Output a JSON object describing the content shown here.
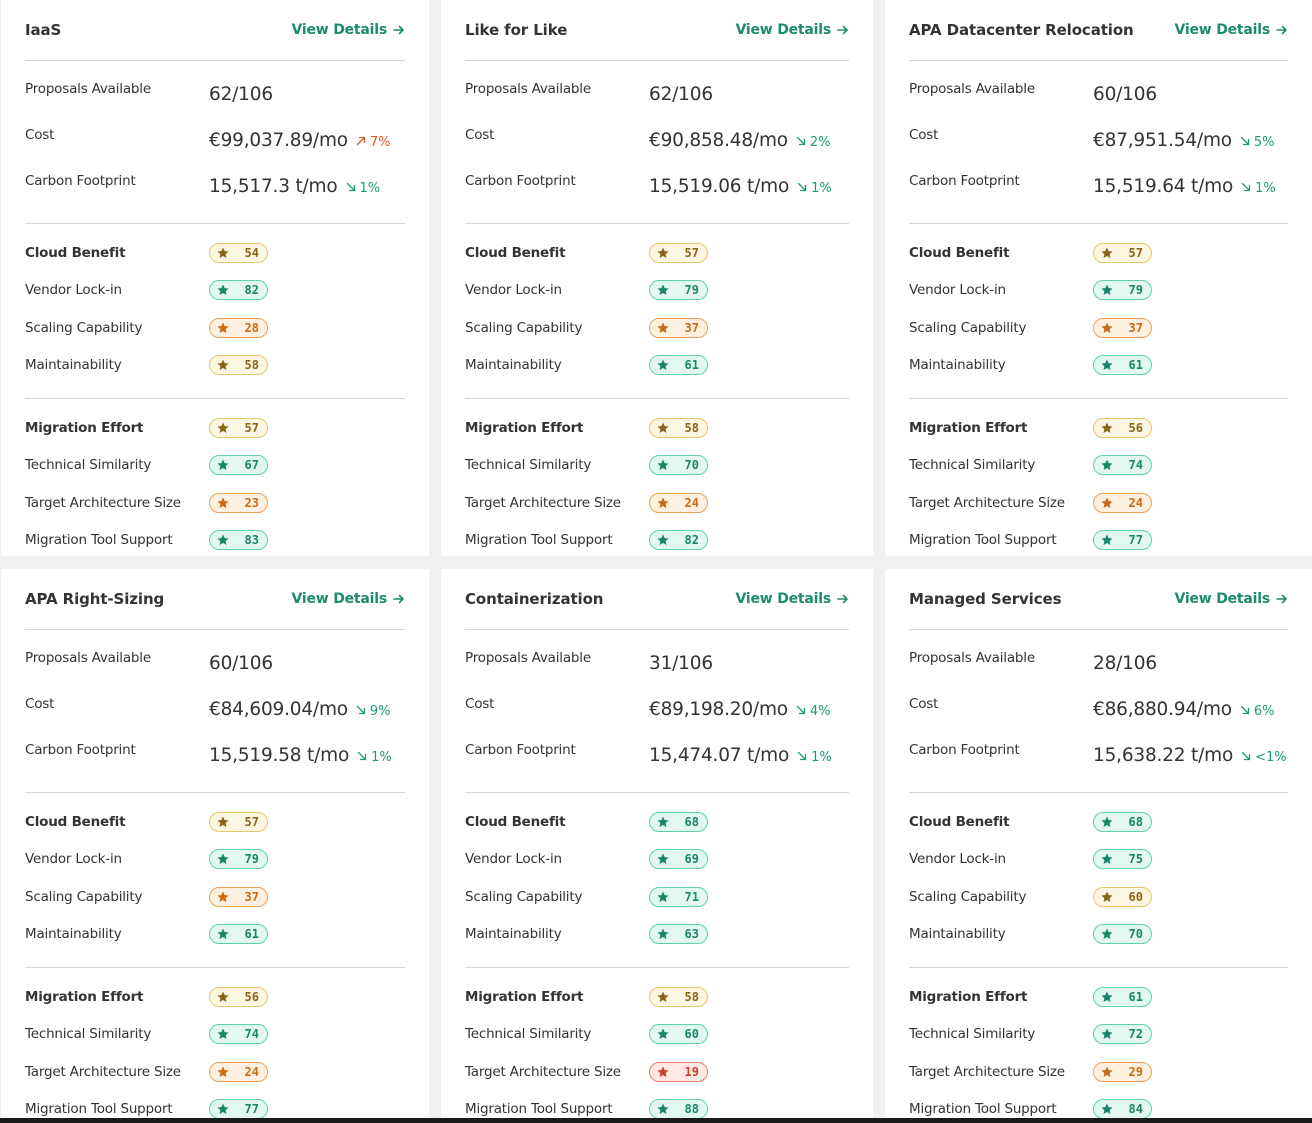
{
  "view_details_label": "View Details",
  "colors": {
    "accent": "#1c8c6e",
    "trend_up": "#d65a2a",
    "trend_down": "#1c9a78",
    "badge_green": "#5fd0b0",
    "badge_orange": "#f0a050",
    "badge_yellow": "#e8c46a",
    "badge_red": "#ec7c66"
  },
  "cards": [
    {
      "title": "IaaS",
      "proposals_label": "Proposals Available",
      "proposals": "62/106",
      "cost_label": "Cost",
      "cost": "€99,037.89/mo",
      "cost_trend": {
        "dir": "up",
        "text": "7%"
      },
      "carbon_label": "Carbon Footprint",
      "carbon": "15,517.3 t/mo",
      "carbon_trend": {
        "dir": "down",
        "text": "1%"
      },
      "cloud_benefit": {
        "label": "Cloud Benefit",
        "score": "54",
        "color": "yellow"
      },
      "cloud_items": [
        {
          "label": "Vendor Lock-in",
          "score": "82",
          "color": "green"
        },
        {
          "label": "Scaling Capability",
          "score": "28",
          "color": "orange"
        },
        {
          "label": "Maintainability",
          "score": "58",
          "color": "yellow"
        }
      ],
      "migration_effort": {
        "label": "Migration Effort",
        "score": "57",
        "color": "yellow"
      },
      "migration_items": [
        {
          "label": "Technical Similarity",
          "score": "67",
          "color": "green"
        },
        {
          "label": "Target Architecture Size",
          "score": "23",
          "color": "orange"
        },
        {
          "label": "Migration Tool Support",
          "score": "83",
          "color": "green"
        }
      ]
    },
    {
      "title": "Like for Like",
      "proposals_label": "Proposals Available",
      "proposals": "62/106",
      "cost_label": "Cost",
      "cost": "€90,858.48/mo",
      "cost_trend": {
        "dir": "down",
        "text": "2%"
      },
      "carbon_label": "Carbon Footprint",
      "carbon": "15,519.06 t/mo",
      "carbon_trend": {
        "dir": "down",
        "text": "1%"
      },
      "cloud_benefit": {
        "label": "Cloud Benefit",
        "score": "57",
        "color": "yellow"
      },
      "cloud_items": [
        {
          "label": "Vendor Lock-in",
          "score": "79",
          "color": "green"
        },
        {
          "label": "Scaling Capability",
          "score": "37",
          "color": "orange"
        },
        {
          "label": "Maintainability",
          "score": "61",
          "color": "green"
        }
      ],
      "migration_effort": {
        "label": "Migration Effort",
        "score": "58",
        "color": "yellow"
      },
      "migration_items": [
        {
          "label": "Technical Similarity",
          "score": "70",
          "color": "green"
        },
        {
          "label": "Target Architecture Size",
          "score": "24",
          "color": "orange"
        },
        {
          "label": "Migration Tool Support",
          "score": "82",
          "color": "green"
        }
      ]
    },
    {
      "title": "APA Datacenter Relocation",
      "proposals_label": "Proposals Available",
      "proposals": "60/106",
      "cost_label": "Cost",
      "cost": "€87,951.54/mo",
      "cost_trend": {
        "dir": "down",
        "text": "5%"
      },
      "carbon_label": "Carbon Footprint",
      "carbon": "15,519.64 t/mo",
      "carbon_trend": {
        "dir": "down",
        "text": "1%"
      },
      "cloud_benefit": {
        "label": "Cloud Benefit",
        "score": "57",
        "color": "yellow"
      },
      "cloud_items": [
        {
          "label": "Vendor Lock-in",
          "score": "79",
          "color": "green"
        },
        {
          "label": "Scaling Capability",
          "score": "37",
          "color": "orange"
        },
        {
          "label": "Maintainability",
          "score": "61",
          "color": "green"
        }
      ],
      "migration_effort": {
        "label": "Migration Effort",
        "score": "56",
        "color": "yellow"
      },
      "migration_items": [
        {
          "label": "Technical Similarity",
          "score": "74",
          "color": "green"
        },
        {
          "label": "Target Architecture Size",
          "score": "24",
          "color": "orange"
        },
        {
          "label": "Migration Tool Support",
          "score": "77",
          "color": "green"
        }
      ]
    },
    {
      "title": "APA Right-Sizing",
      "proposals_label": "Proposals Available",
      "proposals": "60/106",
      "cost_label": "Cost",
      "cost": "€84,609.04/mo",
      "cost_trend": {
        "dir": "down",
        "text": "9%"
      },
      "carbon_label": "Carbon Footprint",
      "carbon": "15,519.58 t/mo",
      "carbon_trend": {
        "dir": "down",
        "text": "1%"
      },
      "cloud_benefit": {
        "label": "Cloud Benefit",
        "score": "57",
        "color": "yellow"
      },
      "cloud_items": [
        {
          "label": "Vendor Lock-in",
          "score": "79",
          "color": "green"
        },
        {
          "label": "Scaling Capability",
          "score": "37",
          "color": "orange"
        },
        {
          "label": "Maintainability",
          "score": "61",
          "color": "green"
        }
      ],
      "migration_effort": {
        "label": "Migration Effort",
        "score": "56",
        "color": "yellow"
      },
      "migration_items": [
        {
          "label": "Technical Similarity",
          "score": "74",
          "color": "green"
        },
        {
          "label": "Target Architecture Size",
          "score": "24",
          "color": "orange"
        },
        {
          "label": "Migration Tool Support",
          "score": "77",
          "color": "green"
        }
      ]
    },
    {
      "title": "Containerization",
      "proposals_label": "Proposals Available",
      "proposals": "31/106",
      "cost_label": "Cost",
      "cost": "€89,198.20/mo",
      "cost_trend": {
        "dir": "down",
        "text": "4%"
      },
      "carbon_label": "Carbon Footprint",
      "carbon": "15,474.07 t/mo",
      "carbon_trend": {
        "dir": "down",
        "text": "1%"
      },
      "cloud_benefit": {
        "label": "Cloud Benefit",
        "score": "68",
        "color": "green"
      },
      "cloud_items": [
        {
          "label": "Vendor Lock-in",
          "score": "69",
          "color": "green"
        },
        {
          "label": "Scaling Capability",
          "score": "71",
          "color": "green"
        },
        {
          "label": "Maintainability",
          "score": "63",
          "color": "green"
        }
      ],
      "migration_effort": {
        "label": "Migration Effort",
        "score": "58",
        "color": "yellow"
      },
      "migration_items": [
        {
          "label": "Technical Similarity",
          "score": "60",
          "color": "green"
        },
        {
          "label": "Target Architecture Size",
          "score": "19",
          "color": "red"
        },
        {
          "label": "Migration Tool Support",
          "score": "88",
          "color": "green"
        }
      ]
    },
    {
      "title": "Managed Services",
      "proposals_label": "Proposals Available",
      "proposals": "28/106",
      "cost_label": "Cost",
      "cost": "€86,880.94/mo",
      "cost_trend": {
        "dir": "down",
        "text": "6%"
      },
      "carbon_label": "Carbon Footprint",
      "carbon": "15,638.22 t/mo",
      "carbon_trend": {
        "dir": "down",
        "text": "<1%"
      },
      "cloud_benefit": {
        "label": "Cloud Benefit",
        "score": "68",
        "color": "green"
      },
      "cloud_items": [
        {
          "label": "Vendor Lock-in",
          "score": "75",
          "color": "green"
        },
        {
          "label": "Scaling Capability",
          "score": "60",
          "color": "yellow"
        },
        {
          "label": "Maintainability",
          "score": "70",
          "color": "green"
        }
      ],
      "migration_effort": {
        "label": "Migration Effort",
        "score": "61",
        "color": "green"
      },
      "migration_items": [
        {
          "label": "Technical Similarity",
          "score": "72",
          "color": "green"
        },
        {
          "label": "Target Architecture Size",
          "score": "29",
          "color": "orange"
        },
        {
          "label": "Migration Tool Support",
          "score": "84",
          "color": "green"
        }
      ]
    }
  ]
}
